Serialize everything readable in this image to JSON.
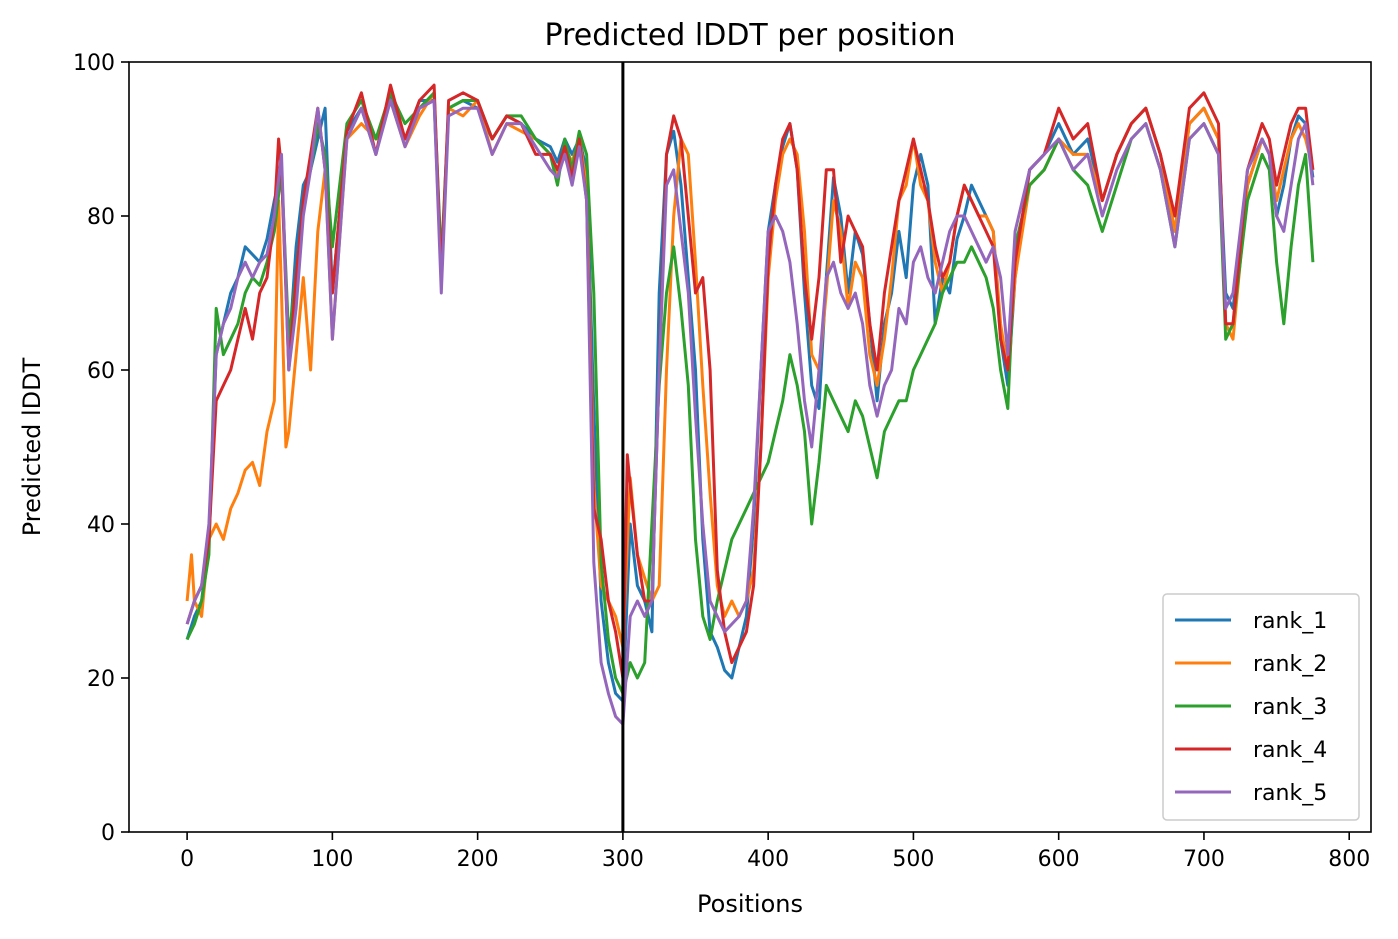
{
  "chart_data": {
    "type": "line",
    "title": "Predicted lDDT per position",
    "xlabel": "Positions",
    "ylabel": "Predicted lDDT",
    "xlim": [
      -40,
      815
    ],
    "ylim": [
      0,
      100
    ],
    "xticks": [
      0,
      100,
      200,
      300,
      400,
      500,
      600,
      700,
      800
    ],
    "yticks": [
      0,
      20,
      40,
      60,
      80,
      100
    ],
    "vline": 300,
    "grid": false,
    "legend_position": "lower-right",
    "series": [
      {
        "name": "rank_1",
        "color": "#1f77b4",
        "x": [
          0,
          5,
          10,
          15,
          20,
          25,
          30,
          35,
          40,
          45,
          50,
          55,
          60,
          65,
          70,
          75,
          80,
          85,
          90,
          95,
          100,
          110,
          120,
          130,
          140,
          150,
          160,
          170,
          175,
          180,
          190,
          200,
          210,
          220,
          230,
          240,
          250,
          255,
          260,
          265,
          270,
          275,
          280,
          285,
          290,
          295,
          300,
          305,
          310,
          315,
          320,
          325,
          330,
          335,
          340,
          345,
          350,
          355,
          360,
          365,
          370,
          375,
          380,
          385,
          390,
          395,
          400,
          405,
          410,
          415,
          420,
          425,
          430,
          435,
          440,
          445,
          450,
          455,
          460,
          465,
          470,
          475,
          480,
          485,
          490,
          495,
          500,
          505,
          510,
          515,
          520,
          525,
          530,
          535,
          540,
          545,
          550,
          555,
          560,
          565,
          570,
          580,
          590,
          600,
          610,
          620,
          630,
          640,
          650,
          660,
          670,
          680,
          690,
          700,
          710,
          715,
          720,
          730,
          740,
          745,
          750,
          755,
          760,
          765,
          770,
          775
        ],
        "values": [
          25,
          28,
          30,
          38,
          62,
          66,
          70,
          72,
          76,
          75,
          74,
          77,
          82,
          86,
          62,
          76,
          84,
          86,
          90,
          94,
          70,
          91,
          94,
          88,
          96,
          90,
          95,
          95,
          72,
          94,
          95,
          94,
          90,
          93,
          92,
          90,
          89,
          87,
          90,
          88,
          90,
          86,
          55,
          30,
          22,
          18,
          17,
          40,
          32,
          30,
          26,
          70,
          88,
          91,
          84,
          72,
          60,
          38,
          26,
          24,
          21,
          20,
          24,
          28,
          40,
          60,
          78,
          84,
          89,
          92,
          86,
          70,
          58,
          55,
          72,
          85,
          80,
          70,
          78,
          75,
          66,
          56,
          66,
          70,
          78,
          72,
          84,
          88,
          84,
          66,
          72,
          70,
          77,
          80,
          84,
          82,
          80,
          78,
          64,
          58,
          72,
          86,
          88,
          92,
          88,
          90,
          82,
          88,
          92,
          94,
          88,
          78,
          92,
          94,
          90,
          70,
          68,
          84,
          90,
          88,
          80,
          84,
          90,
          93,
          92,
          85
        ]
      },
      {
        "name": "rank_2",
        "color": "#ff7f0e",
        "x": [
          0,
          3,
          5,
          10,
          15,
          20,
          25,
          30,
          35,
          40,
          45,
          50,
          55,
          60,
          63,
          65,
          68,
          70,
          75,
          80,
          85,
          90,
          95,
          100,
          110,
          120,
          130,
          140,
          150,
          160,
          170,
          175,
          180,
          190,
          200,
          210,
          220,
          230,
          240,
          250,
          255,
          260,
          265,
          270,
          275,
          280,
          285,
          290,
          295,
          300,
          305,
          310,
          315,
          320,
          325,
          330,
          335,
          340,
          345,
          350,
          355,
          360,
          365,
          370,
          375,
          380,
          385,
          390,
          395,
          400,
          405,
          410,
          415,
          420,
          425,
          430,
          435,
          440,
          445,
          450,
          455,
          460,
          465,
          470,
          475,
          480,
          485,
          490,
          495,
          500,
          505,
          510,
          515,
          520,
          525,
          530,
          535,
          540,
          545,
          550,
          555,
          560,
          565,
          570,
          580,
          590,
          600,
          610,
          620,
          630,
          640,
          650,
          660,
          670,
          680,
          690,
          700,
          710,
          715,
          720,
          730,
          740,
          745,
          750,
          755,
          760,
          765,
          770,
          775
        ],
        "values": [
          30,
          36,
          30,
          28,
          38,
          40,
          38,
          42,
          44,
          47,
          48,
          45,
          52,
          56,
          82,
          70,
          50,
          52,
          62,
          72,
          60,
          78,
          86,
          64,
          90,
          92,
          90,
          95,
          89,
          93,
          96,
          72,
          94,
          93,
          95,
          88,
          92,
          91,
          90,
          88,
          85,
          89,
          87,
          90,
          84,
          45,
          32,
          30,
          28,
          24,
          46,
          36,
          33,
          30,
          32,
          60,
          80,
          90,
          88,
          74,
          58,
          44,
          32,
          28,
          30,
          28,
          30,
          34,
          50,
          72,
          82,
          88,
          90,
          88,
          78,
          62,
          60,
          70,
          82,
          78,
          68,
          74,
          72,
          62,
          58,
          64,
          72,
          82,
          84,
          90,
          84,
          82,
          74,
          70,
          74,
          80,
          84,
          82,
          80,
          80,
          78,
          66,
          60,
          72,
          84,
          86,
          90,
          88,
          88,
          82,
          88,
          92,
          94,
          88,
          78,
          92,
          94,
          90,
          66,
          64,
          84,
          90,
          88,
          82,
          86,
          90,
          92,
          90,
          86
        ]
      },
      {
        "name": "rank_3",
        "color": "#2ca02c",
        "x": [
          0,
          5,
          10,
          15,
          20,
          25,
          30,
          35,
          40,
          45,
          50,
          55,
          60,
          65,
          70,
          75,
          80,
          85,
          90,
          95,
          100,
          110,
          120,
          130,
          140,
          150,
          160,
          170,
          175,
          180,
          190,
          200,
          210,
          220,
          230,
          240,
          250,
          255,
          260,
          265,
          270,
          275,
          280,
          285,
          290,
          295,
          300,
          305,
          310,
          315,
          320,
          325,
          330,
          335,
          340,
          345,
          350,
          355,
          360,
          365,
          370,
          375,
          380,
          385,
          390,
          395,
          400,
          405,
          410,
          415,
          420,
          425,
          430,
          435,
          440,
          445,
          450,
          455,
          460,
          465,
          470,
          475,
          480,
          485,
          490,
          495,
          500,
          505,
          510,
          515,
          520,
          525,
          530,
          535,
          540,
          545,
          550,
          555,
          560,
          565,
          570,
          580,
          590,
          600,
          610,
          620,
          630,
          640,
          650,
          660,
          670,
          680,
          690,
          700,
          710,
          715,
          720,
          730,
          740,
          745,
          750,
          755,
          760,
          765,
          770,
          775
        ],
        "values": [
          25,
          27,
          30,
          36,
          68,
          62,
          64,
          66,
          70,
          72,
          71,
          74,
          78,
          86,
          64,
          72,
          82,
          86,
          92,
          88,
          76,
          92,
          95,
          90,
          96,
          92,
          94,
          96,
          74,
          94,
          95,
          95,
          90,
          93,
          93,
          90,
          88,
          84,
          90,
          86,
          91,
          88,
          70,
          35,
          25,
          20,
          18,
          22,
          20,
          22,
          40,
          58,
          70,
          76,
          68,
          58,
          38,
          28,
          25,
          30,
          34,
          38,
          40,
          42,
          44,
          46,
          48,
          52,
          56,
          62,
          58,
          52,
          40,
          48,
          58,
          56,
          54,
          52,
          56,
          54,
          50,
          46,
          52,
          54,
          56,
          56,
          60,
          62,
          64,
          66,
          70,
          72,
          74,
          74,
          76,
          74,
          72,
          68,
          60,
          55,
          76,
          84,
          86,
          90,
          86,
          84,
          78,
          84,
          90,
          92,
          86,
          76,
          90,
          92,
          88,
          64,
          66,
          82,
          88,
          86,
          74,
          66,
          76,
          84,
          88,
          74
        ]
      },
      {
        "name": "rank_4",
        "color": "#d62728",
        "x": [
          0,
          5,
          10,
          15,
          20,
          25,
          30,
          35,
          40,
          45,
          50,
          55,
          60,
          63,
          65,
          70,
          75,
          80,
          85,
          90,
          95,
          100,
          110,
          120,
          130,
          140,
          150,
          160,
          170,
          175,
          180,
          190,
          200,
          210,
          220,
          230,
          240,
          250,
          255,
          260,
          265,
          270,
          275,
          280,
          285,
          290,
          295,
          300,
          303,
          305,
          310,
          315,
          320,
          325,
          330,
          335,
          340,
          345,
          350,
          355,
          360,
          365,
          370,
          375,
          380,
          385,
          390,
          395,
          400,
          405,
          410,
          415,
          420,
          425,
          430,
          435,
          440,
          445,
          450,
          455,
          460,
          465,
          470,
          475,
          480,
          485,
          490,
          495,
          500,
          505,
          510,
          515,
          520,
          525,
          530,
          535,
          540,
          545,
          550,
          555,
          560,
          565,
          570,
          580,
          590,
          600,
          610,
          620,
          630,
          640,
          650,
          660,
          670,
          680,
          690,
          700,
          710,
          715,
          720,
          730,
          740,
          745,
          750,
          755,
          760,
          765,
          770,
          775
        ],
        "values": [
          27,
          30,
          32,
          38,
          56,
          58,
          60,
          64,
          68,
          64,
          70,
          72,
          80,
          90,
          86,
          60,
          72,
          82,
          88,
          94,
          86,
          70,
          91,
          96,
          88,
          97,
          90,
          95,
          97,
          72,
          95,
          96,
          95,
          90,
          93,
          92,
          88,
          88,
          86,
          89,
          85,
          90,
          82,
          42,
          38,
          30,
          26,
          20,
          49,
          45,
          36,
          30,
          30,
          60,
          88,
          93,
          90,
          80,
          70,
          72,
          60,
          34,
          26,
          22,
          24,
          26,
          32,
          50,
          74,
          84,
          90,
          92,
          86,
          72,
          64,
          72,
          86,
          86,
          74,
          80,
          78,
          76,
          66,
          60,
          70,
          76,
          82,
          86,
          90,
          86,
          82,
          76,
          72,
          74,
          80,
          84,
          82,
          80,
          78,
          76,
          64,
          60,
          74,
          86,
          88,
          94,
          90,
          92,
          82,
          88,
          92,
          94,
          88,
          80,
          94,
          96,
          92,
          66,
          66,
          86,
          92,
          90,
          84,
          88,
          92,
          94,
          94,
          86
        ]
      },
      {
        "name": "rank_5",
        "color": "#9467bd",
        "x": [
          0,
          5,
          10,
          15,
          20,
          25,
          30,
          35,
          40,
          45,
          50,
          55,
          60,
          65,
          70,
          75,
          80,
          85,
          90,
          95,
          100,
          110,
          120,
          130,
          140,
          150,
          160,
          170,
          175,
          180,
          190,
          200,
          210,
          220,
          230,
          240,
          250,
          255,
          260,
          265,
          270,
          275,
          280,
          285,
          290,
          295,
          300,
          305,
          310,
          315,
          320,
          325,
          330,
          335,
          340,
          345,
          350,
          355,
          360,
          365,
          370,
          375,
          380,
          385,
          390,
          395,
          400,
          405,
          410,
          415,
          420,
          425,
          430,
          435,
          440,
          445,
          450,
          455,
          460,
          465,
          470,
          475,
          480,
          485,
          490,
          495,
          500,
          505,
          510,
          515,
          520,
          525,
          530,
          535,
          540,
          545,
          550,
          555,
          560,
          565,
          570,
          580,
          590,
          600,
          610,
          620,
          630,
          640,
          650,
          660,
          670,
          680,
          690,
          700,
          710,
          715,
          720,
          730,
          740,
          745,
          750,
          755,
          760,
          765,
          770,
          775
        ],
        "values": [
          27,
          30,
          32,
          40,
          62,
          66,
          68,
          72,
          74,
          72,
          74,
          75,
          80,
          88,
          60,
          68,
          80,
          86,
          94,
          86,
          64,
          90,
          94,
          88,
          95,
          89,
          94,
          95,
          70,
          93,
          94,
          94,
          88,
          92,
          92,
          89,
          86,
          85,
          88,
          84,
          89,
          82,
          35,
          22,
          18,
          15,
          14,
          28,
          30,
          28,
          30,
          60,
          84,
          86,
          78,
          70,
          54,
          40,
          30,
          28,
          26,
          27,
          28,
          30,
          42,
          60,
          78,
          80,
          78,
          74,
          66,
          56,
          50,
          60,
          72,
          74,
          70,
          68,
          70,
          66,
          58,
          54,
          58,
          60,
          68,
          66,
          74,
          76,
          72,
          70,
          74,
          78,
          80,
          80,
          78,
          76,
          74,
          76,
          72,
          62,
          78,
          86,
          88,
          90,
          86,
          88,
          80,
          86,
          90,
          92,
          86,
          76,
          90,
          92,
          88,
          68,
          70,
          86,
          90,
          88,
          80,
          78,
          84,
          90,
          92,
          84
        ]
      }
    ]
  }
}
